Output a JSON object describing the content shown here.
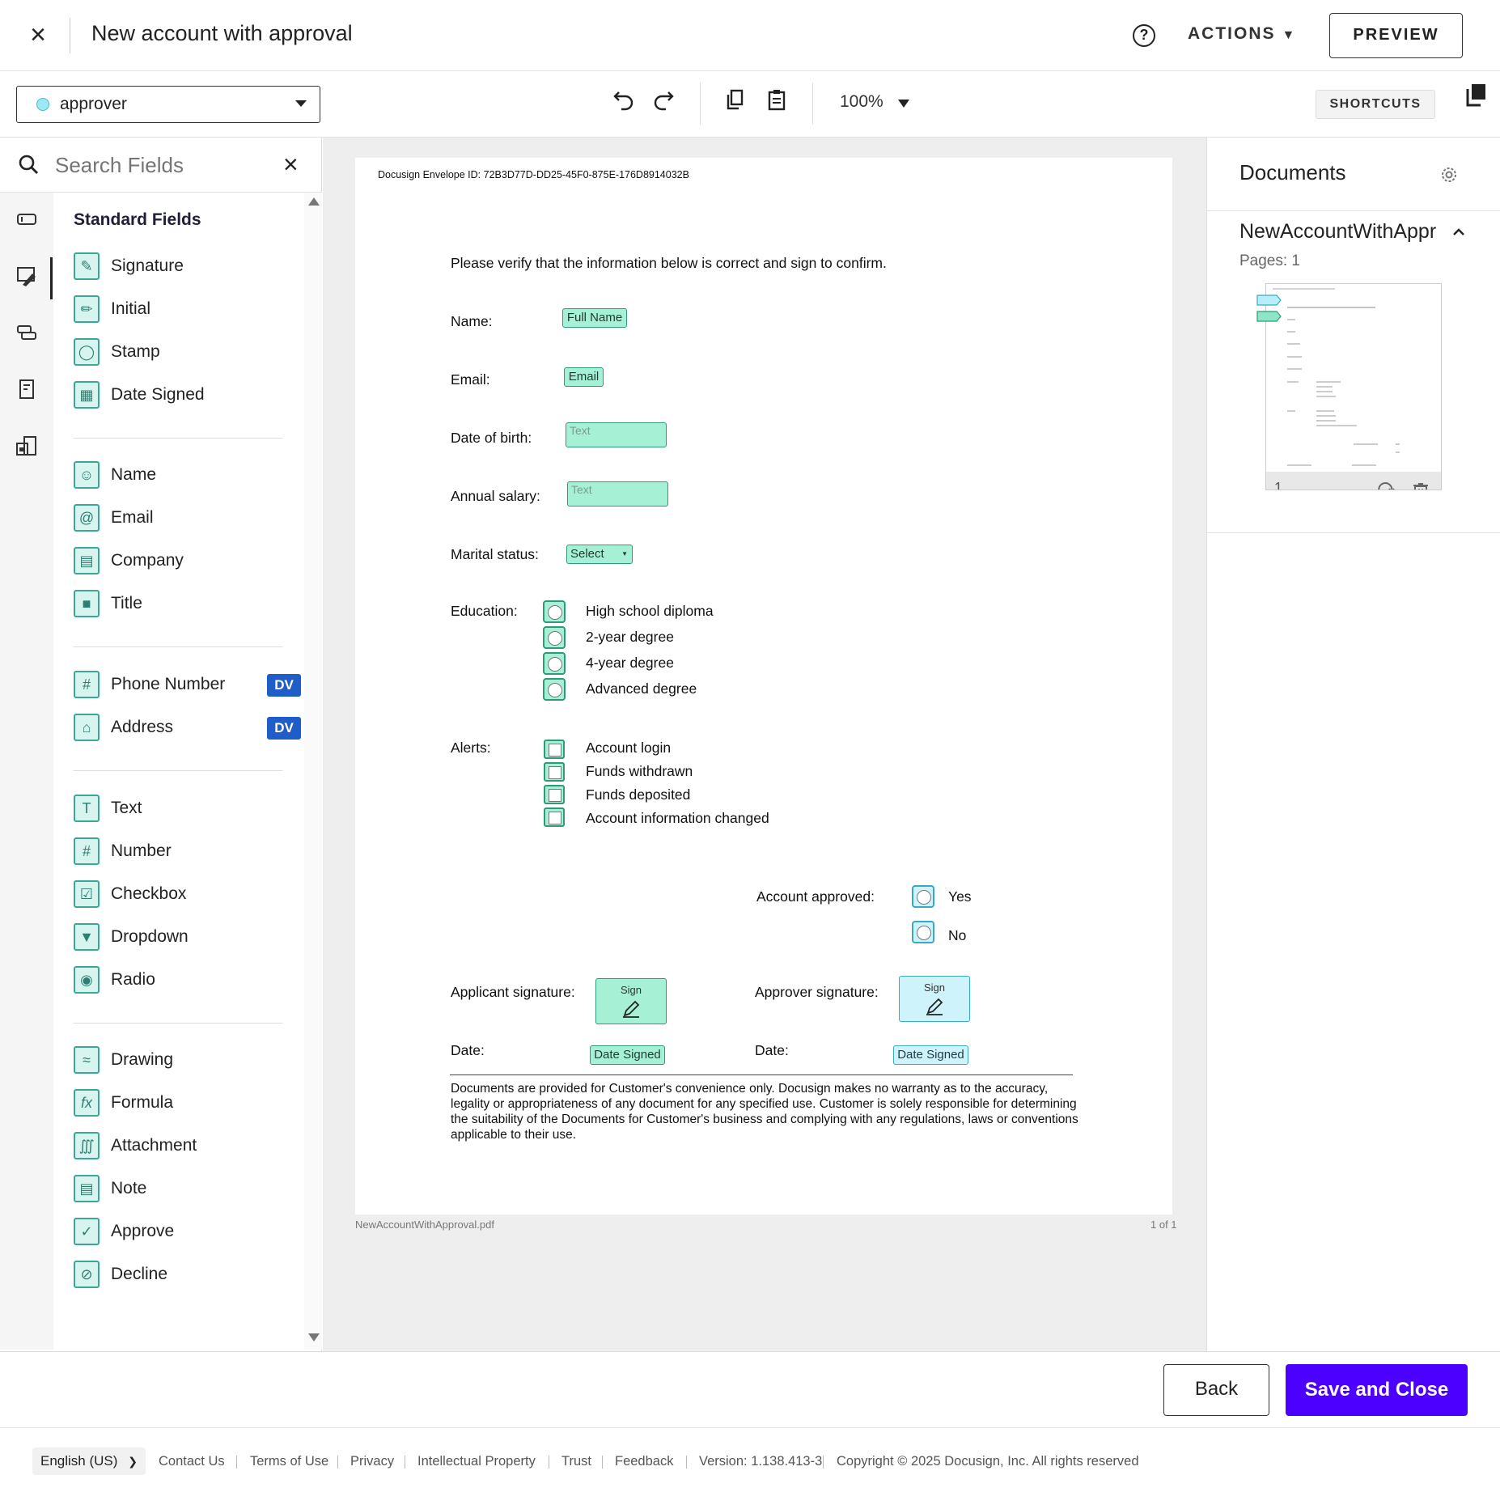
{
  "header": {
    "title": "New account with approval",
    "actions_label": "ACTIONS",
    "preview_label": "PREVIEW"
  },
  "toolbar": {
    "recipient": "approver",
    "zoom": "100%",
    "shortcuts_label": "SHORTCUTS"
  },
  "left_panel": {
    "search_placeholder": "Search Fields",
    "section_title": "Standard Fields",
    "groups": [
      [
        {
          "label": "Signature",
          "icon": "signature-icon"
        },
        {
          "label": "Initial",
          "icon": "initial-icon"
        },
        {
          "label": "Stamp",
          "icon": "stamp-icon"
        },
        {
          "label": "Date Signed",
          "icon": "calendar-icon"
        }
      ],
      [
        {
          "label": "Name",
          "icon": "person-icon"
        },
        {
          "label": "Email",
          "icon": "at-icon"
        },
        {
          "label": "Company",
          "icon": "building-icon"
        },
        {
          "label": "Title",
          "icon": "briefcase-icon"
        }
      ],
      [
        {
          "label": "Phone Number",
          "icon": "hash-icon",
          "badge": "DV"
        },
        {
          "label": "Address",
          "icon": "home-icon",
          "badge": "DV"
        }
      ],
      [
        {
          "label": "Text",
          "icon": "text-icon"
        },
        {
          "label": "Number",
          "icon": "hash-icon"
        },
        {
          "label": "Checkbox",
          "icon": "checkbox-icon"
        },
        {
          "label": "Dropdown",
          "icon": "dropdown-icon"
        },
        {
          "label": "Radio",
          "icon": "radio-icon"
        }
      ],
      [
        {
          "label": "Drawing",
          "icon": "drawing-icon"
        },
        {
          "label": "Formula",
          "icon": "formula-icon"
        },
        {
          "label": "Attachment",
          "icon": "paperclip-icon"
        },
        {
          "label": "Note",
          "icon": "note-icon"
        },
        {
          "label": "Approve",
          "icon": "check-icon"
        },
        {
          "label": "Decline",
          "icon": "decline-icon"
        }
      ]
    ]
  },
  "document": {
    "envelope_id": "Docusign Envelope ID: 72B3D77D-DD25-45F0-875E-176D8914032B",
    "intro": "Please verify that the information below is correct and sign to confirm.",
    "labels": {
      "name": "Name:",
      "email": "Email:",
      "dob": "Date of birth:",
      "salary": "Annual salary:",
      "marital": "Marital status:",
      "education": "Education:",
      "alerts": "Alerts:",
      "approved": "Account approved:",
      "applicant_sig": "Applicant signature:",
      "approver_sig": "Approver signature:",
      "date1": "Date:",
      "date2": "Date:"
    },
    "tags": {
      "full_name": "Full Name",
      "email": "Email",
      "text1": "Text",
      "text2": "Text",
      "select": "Select",
      "sign": "Sign",
      "sign2": "Sign",
      "date_signed": "Date Signed",
      "date_signed2": "Date Signed"
    },
    "education_options": [
      "High school diploma",
      "2-year degree",
      "4-year degree",
      "Advanced degree"
    ],
    "alert_options": [
      "Account login",
      "Funds withdrawn",
      "Funds deposited",
      "Account information changed"
    ],
    "approval_options": [
      "Yes",
      "No"
    ],
    "disclaimer": "Documents are provided for Customer's convenience only.  Docusign makes no warranty as to the accuracy, legality or appropriateness of any document for any specified use.  Customer is solely responsible for determining the suitability of the Documents for Customer's business and complying with any regulations, laws or conventions applicable to their use.",
    "filename": "NewAccountWithApproval.pdf",
    "page_count": "1 of 1"
  },
  "right_panel": {
    "title": "Documents",
    "doc_name": "NewAccountWithApproval",
    "pages": "Pages: 1",
    "thumb_page_num": "1"
  },
  "bottom": {
    "back_label": "Back",
    "save_label": "Save and Close"
  },
  "footer": {
    "language": "English (US)",
    "links": [
      "Contact Us",
      "Terms of Use",
      "Privacy",
      "Intellectual Property",
      "Trust",
      "Feedback"
    ],
    "version": "Version: 1.138.413-3",
    "copyright": "Copyright © 2025 Docusign, Inc. All rights reserved"
  },
  "colors": {
    "accent": "#4c00ff",
    "tag_green": "#a6f0d6",
    "tag_blue": "#cff3fb",
    "dv_badge": "#1f5ec9"
  }
}
